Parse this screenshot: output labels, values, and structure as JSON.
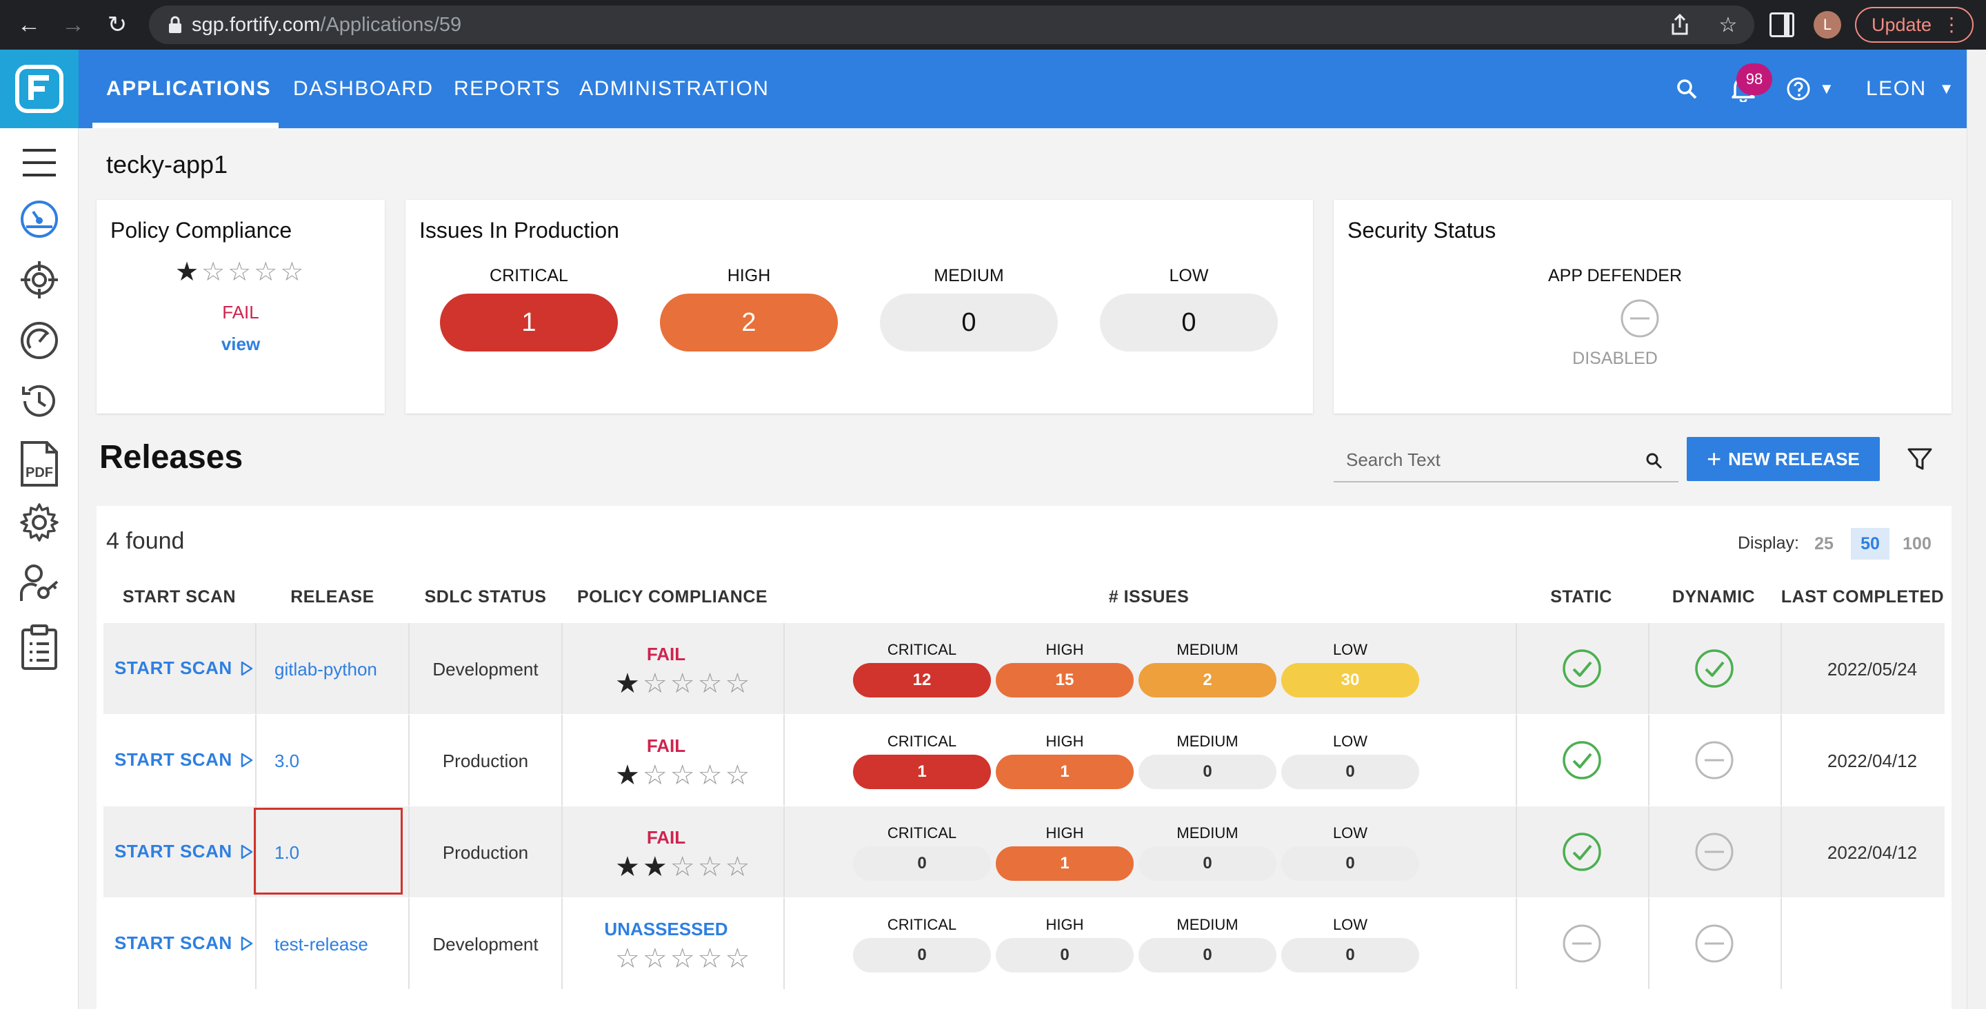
{
  "browser": {
    "url_host": "sgp.fortify.com",
    "url_path": "/Applications/59",
    "profile_initial": "L",
    "update_label": "Update"
  },
  "nav": {
    "tabs": [
      "APPLICATIONS",
      "DASHBOARD",
      "REPORTS",
      "ADMINISTRATION"
    ],
    "notification_count": "98",
    "user": "LEON"
  },
  "sidebar": {
    "icons": [
      "menu-icon",
      "dashboard-icon",
      "target-icon",
      "gauge-icon",
      "history-icon",
      "pdf-icon",
      "settings-icon",
      "user-key-icon",
      "clipboard-icon"
    ],
    "pdf_text": "PDF"
  },
  "app": {
    "name": "tecky-app1"
  },
  "policy_card": {
    "title": "Policy Compliance",
    "rating": 1,
    "max_rating": 5,
    "status": "FAIL",
    "link": "view"
  },
  "issues_card": {
    "title": "Issues In Production",
    "levels": [
      {
        "label": "CRITICAL",
        "count": "1"
      },
      {
        "label": "HIGH",
        "count": "2"
      },
      {
        "label": "MEDIUM",
        "count": "0"
      },
      {
        "label": "LOW",
        "count": "0"
      }
    ]
  },
  "security_card": {
    "title": "Security Status",
    "item_label": "APP DEFENDER",
    "item_status": "DISABLED"
  },
  "releases": {
    "title": "Releases",
    "search_placeholder": "Search Text",
    "new_release_label": "NEW RELEASE",
    "found_text": "4 found",
    "display_label": "Display:",
    "display_options": [
      "25",
      "50",
      "100"
    ],
    "display_selected": "50",
    "columns": [
      "START SCAN",
      "RELEASE",
      "SDLC STATUS",
      "POLICY COMPLIANCE",
      "# ISSUES",
      "STATIC",
      "DYNAMIC",
      "LAST COMPLETED"
    ],
    "issue_levels": [
      "CRITICAL",
      "HIGH",
      "MEDIUM",
      "LOW"
    ],
    "start_scan_label": "START SCAN",
    "rows": [
      {
        "release": "gitlab-python",
        "sdlc": "Development",
        "compliance": "FAIL",
        "rating": 1,
        "issues": [
          "12",
          "15",
          "2",
          "30"
        ],
        "static": "passed",
        "dynamic": "passed",
        "last_completed": "2022/05/24"
      },
      {
        "release": "3.0",
        "sdlc": "Production",
        "compliance": "FAIL",
        "rating": 1,
        "issues": [
          "1",
          "1",
          "0",
          "0"
        ],
        "static": "passed",
        "dynamic": "none",
        "last_completed": "2022/04/12"
      },
      {
        "release": "1.0",
        "sdlc": "Production",
        "compliance": "FAIL",
        "rating": 2,
        "issues": [
          "0",
          "1",
          "0",
          "0"
        ],
        "static": "passed",
        "dynamic": "none",
        "last_completed": "2022/04/12"
      },
      {
        "release": "test-release",
        "sdlc": "Development",
        "compliance": "UNASSESSED",
        "rating": 0,
        "issues": [
          "0",
          "0",
          "0",
          "0"
        ],
        "static": "none",
        "dynamic": "none",
        "last_completed": ""
      }
    ]
  },
  "colors": {
    "brand": "#2e7fe0",
    "critical": "#d0342c",
    "high": "#e8703a",
    "medium": "#eda03b",
    "low": "#f5cc45",
    "neutral_pill": "#ececed",
    "fail": "#d0234e",
    "pass_check": "#4caf50"
  }
}
